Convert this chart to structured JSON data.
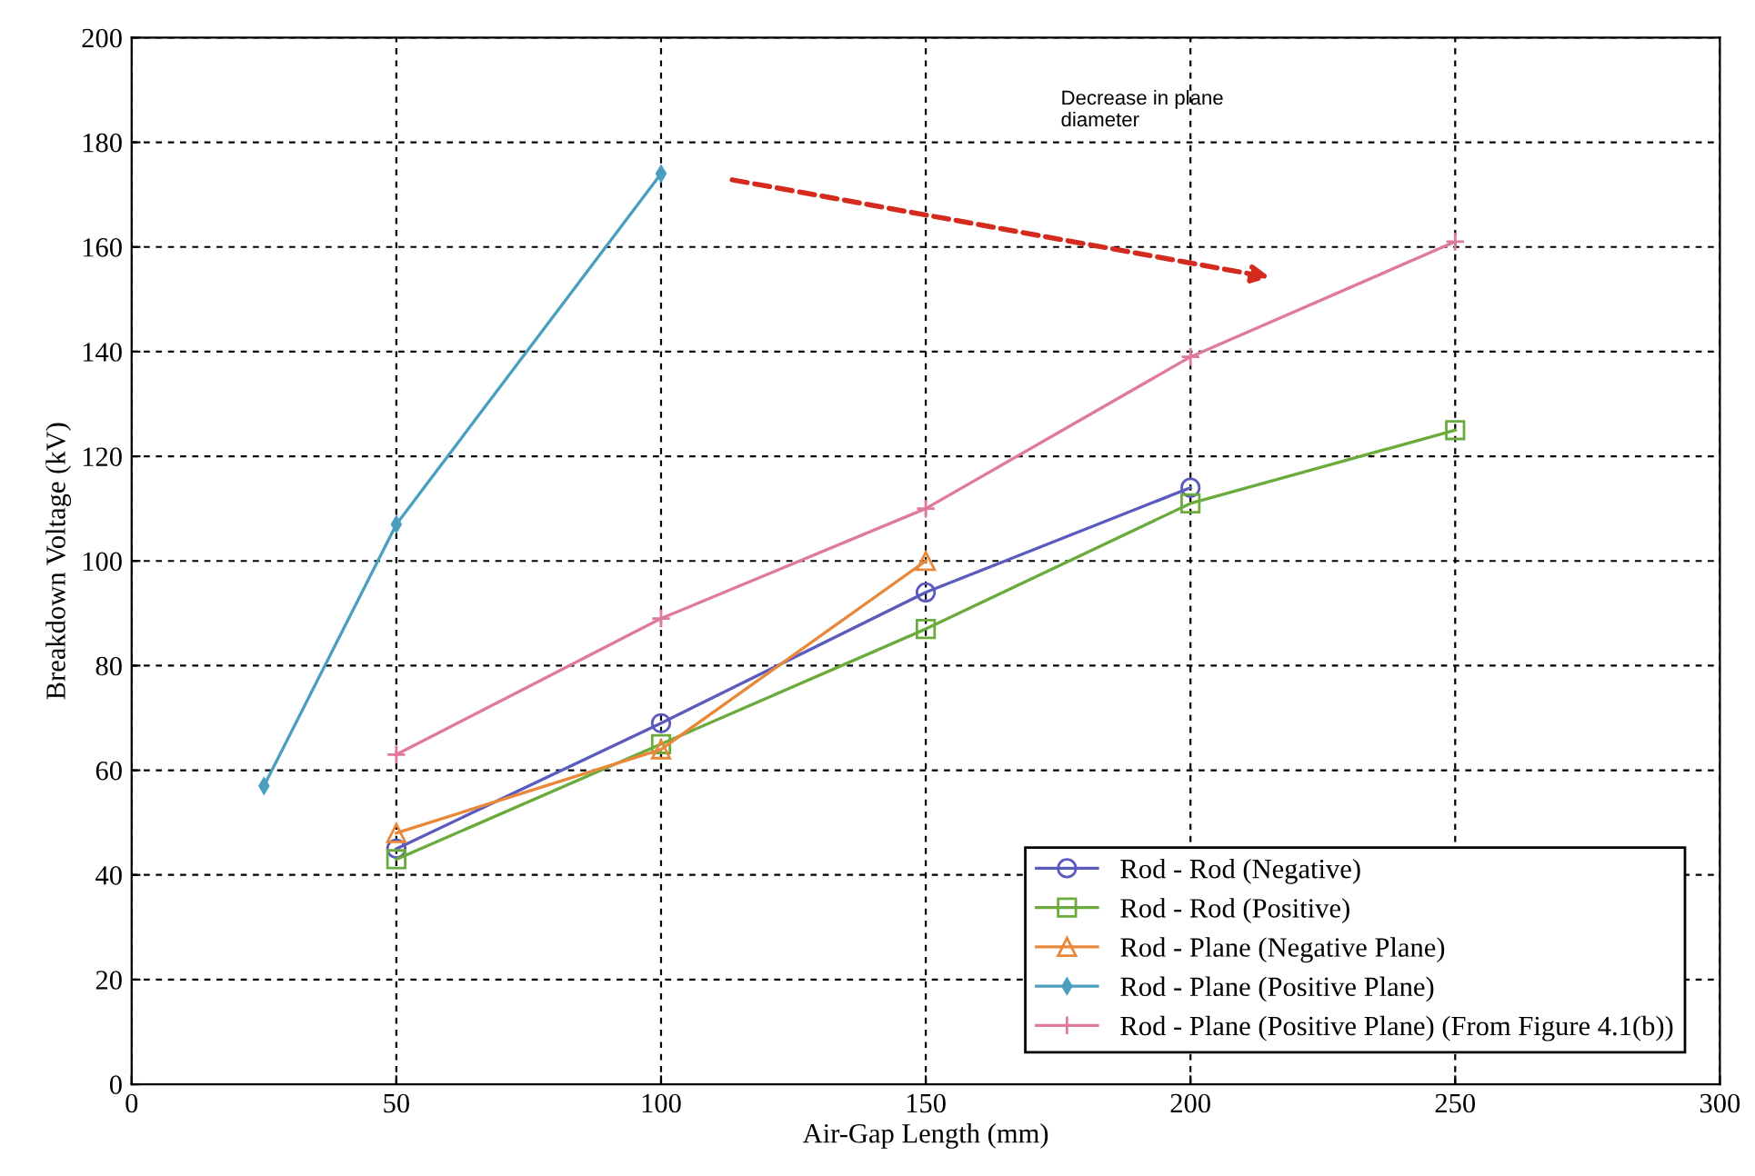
{
  "chart_data": {
    "type": "line",
    "xlabel": "Air-Gap Length (mm)",
    "ylabel": "Breakdown Voltage (kV)",
    "xlim": [
      0,
      300
    ],
    "xticks": [
      0,
      50,
      100,
      150,
      200,
      250,
      300
    ],
    "ylim": [
      0,
      200
    ],
    "yticks": [
      0,
      20,
      40,
      60,
      80,
      100,
      120,
      140,
      160,
      180,
      200
    ],
    "grid": true,
    "legend": "bottom right",
    "series": [
      {
        "name": "Rod - Rod (Negative)",
        "color": "#5b5bbf",
        "marker": "circle",
        "x": [
          50,
          100,
          150,
          200
        ],
        "values": [
          45,
          69,
          94,
          114
        ]
      },
      {
        "name": "Rod - Rod (Positive)",
        "color": "#6aab3c",
        "marker": "square",
        "x": [
          50,
          100,
          150,
          200,
          250
        ],
        "values": [
          43,
          65,
          87,
          111,
          125
        ]
      },
      {
        "name": "Rod - Plane (Negative Plane)",
        "color": "#e8883a",
        "marker": "triangle",
        "x": [
          50,
          100,
          150
        ],
        "values": [
          48,
          64,
          100
        ]
      },
      {
        "name": "Rod - Plane (Positive Plane)",
        "color": "#4a9fc0",
        "marker": "diamond",
        "x": [
          25,
          50,
          100
        ],
        "values": [
          57,
          107,
          174
        ]
      },
      {
        "name": "Rod - Plane (Positive Plane) (From Figure 4.1(b))",
        "color": "#e07a9a",
        "marker": "cross",
        "x": [
          50,
          100,
          150,
          200,
          250
        ],
        "values": [
          63,
          89,
          110,
          139,
          161
        ]
      }
    ],
    "annotations": [
      "Decrease in plane\ndiameter"
    ]
  }
}
